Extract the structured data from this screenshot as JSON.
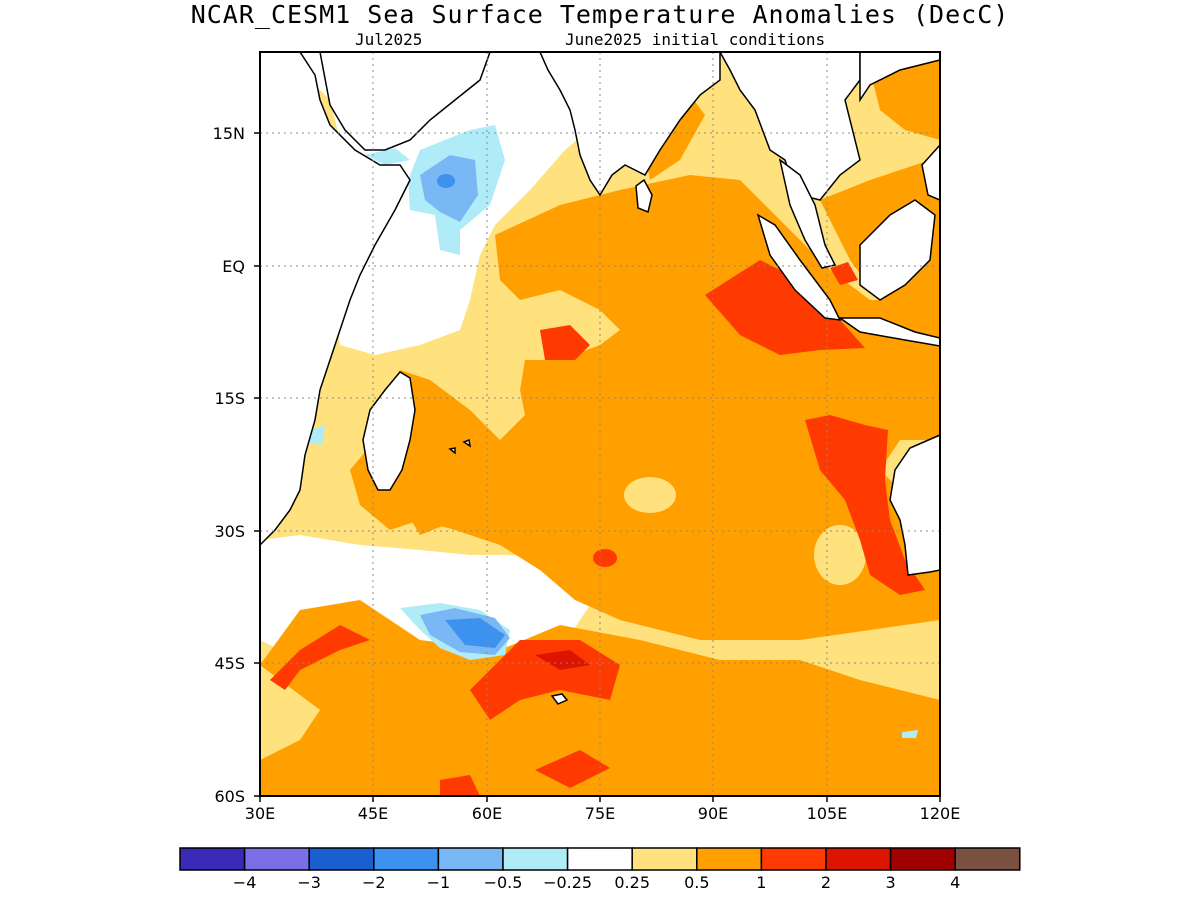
{
  "title": "NCAR_CESM1 Sea Surface Temperature Anomalies (DecC)",
  "subtitle_left": "Jul2025",
  "subtitle_right": "June2025 initial conditions",
  "lat_labels": [
    "15N",
    "EQ",
    "15S",
    "30S",
    "45S",
    "60S"
  ],
  "lon_labels": [
    "30E",
    "45E",
    "60E",
    "75E",
    "90E",
    "105E",
    "120E"
  ],
  "colorbar": {
    "labels": [
      "-4",
      "-3",
      "-2",
      "-1",
      "-0.5",
      "-0.25",
      "0.25",
      "0.5",
      "1",
      "2",
      "3",
      "4"
    ],
    "colors": [
      "#3a2ab8",
      "#7b6fe8",
      "#1a5fd0",
      "#3c92ee",
      "#7ab8f5",
      "#b0ecf8",
      "#ffffff",
      "#ffe27e",
      "#ffa000",
      "#ff3a00",
      "#dc1400",
      "#a00000",
      "#7a5040"
    ]
  },
  "anomaly_colors": {
    "light_blue": "#b0ecf8",
    "mid_blue": "#7ab8f5",
    "blue": "#3c92ee",
    "light_yellow": "#ffe27e",
    "orange": "#ffa000",
    "red_orange": "#ff3a00",
    "red": "#dc1400"
  }
}
